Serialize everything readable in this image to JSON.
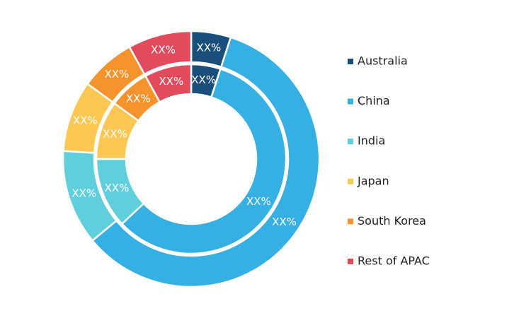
{
  "chart_data": {
    "type": "pie",
    "categories": [
      "Australia",
      "China",
      "India",
      "Japan",
      "South Korea",
      "Rest of APAC"
    ],
    "colors": [
      "#1b4f7b",
      "#36afe3",
      "#5fcfdb",
      "#fdc753",
      "#f7932c",
      "#e34b5c"
    ],
    "series": [
      {
        "values": [
          5,
          59,
          12,
          9,
          7,
          8
        ],
        "value_labels": [
          "XX%",
          "XX%",
          "XX%",
          "XX%",
          "XX%",
          "XX%"
        ]
      },
      {
        "values": [
          5,
          58,
          12,
          10,
          7,
          8
        ],
        "value_labels": [
          "XX%",
          "XX%",
          "XX%",
          "XX%",
          "XX%",
          "XX%"
        ]
      }
    ]
  }
}
